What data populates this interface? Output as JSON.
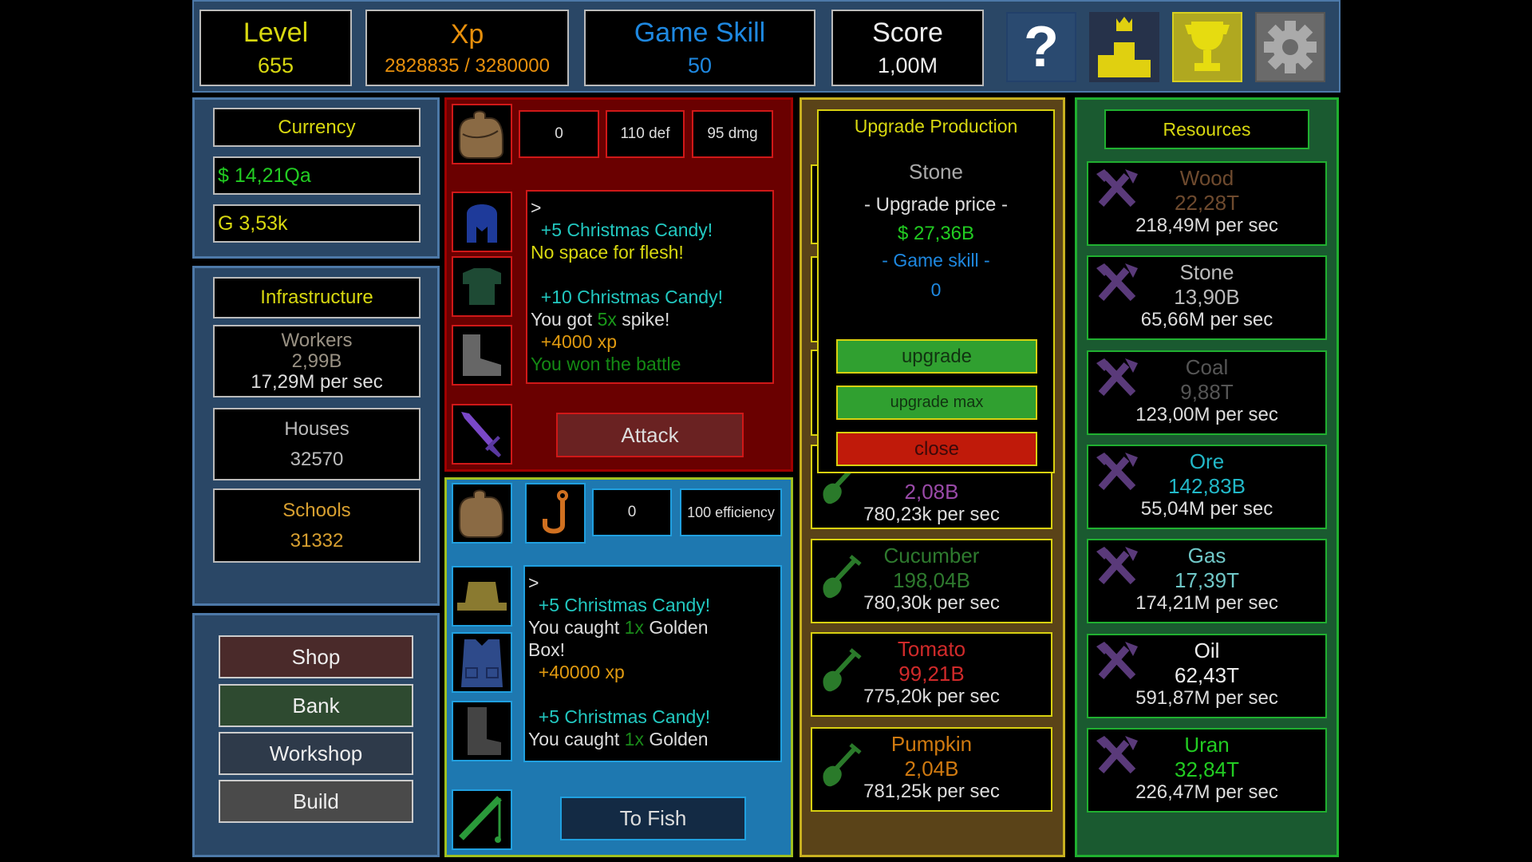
{
  "header": {
    "level": {
      "label": "Level",
      "value": "655"
    },
    "xp": {
      "label": "Xp",
      "value": "2828835 / 3280000"
    },
    "game_skill": {
      "label": "Game Skill",
      "value": "50"
    },
    "score": {
      "label": "Score",
      "value": "1,00M"
    },
    "icons": [
      "question-icon",
      "leaderboard-podium-icon",
      "trophy-icon",
      "gear-icon"
    ]
  },
  "currency": {
    "title": "Currency",
    "money": "$ 14,21Qa",
    "gold": "G 3,53k"
  },
  "infrastructure": {
    "title": "Infrastructure",
    "workers": {
      "label": "Workers",
      "value": "2,99B",
      "rate": "17,29M per sec"
    },
    "houses": {
      "label": "Houses",
      "value": "32570"
    },
    "schools": {
      "label": "Schools",
      "value": "31332"
    }
  },
  "nav": {
    "shop": "Shop",
    "bank": "Bank",
    "workshop": "Workshop",
    "build": "Build"
  },
  "battle": {
    "stats": [
      "0",
      "110 def",
      "95 dmg"
    ],
    "attack": "Attack",
    "log": [
      [
        {
          "t": ">",
          "c": "#dddddd"
        }
      ],
      [
        {
          "t": "  +5 Christmas Candy!",
          "c": "#22c8c0"
        }
      ],
      [
        {
          "t": "No space for flesh!",
          "c": "#d8d810"
        }
      ],
      [
        {
          "t": " ",
          "c": "#dddddd"
        }
      ],
      [
        {
          "t": "  +10 Christmas Candy!",
          "c": "#22c8c0"
        }
      ],
      [
        {
          "t": "You got ",
          "c": "#dddddd"
        },
        {
          "t": "5x",
          "c": "#1a9a1a"
        },
        {
          "t": " spike!",
          "c": "#dddddd"
        }
      ],
      [
        {
          "t": "  +4000 xp",
          "c": "#e09a10"
        }
      ],
      [
        {
          "t": "You won the battle",
          "c": "#148a14"
        }
      ]
    ]
  },
  "fishing": {
    "stats": [
      "0",
      "100 efficiency"
    ],
    "button": "To Fish",
    "log": [
      [
        {
          "t": ">",
          "c": "#dddddd"
        }
      ],
      [
        {
          "t": "  +5 Christmas Candy!",
          "c": "#22c8c0"
        }
      ],
      [
        {
          "t": "You caught ",
          "c": "#dddddd"
        },
        {
          "t": "1x",
          "c": "#1a8a1a"
        },
        {
          "t": " Golden",
          "c": "#dddddd"
        }
      ],
      [
        {
          "t": "Box!",
          "c": "#dddddd"
        }
      ],
      [
        {
          "t": "  +40000 xp",
          "c": "#e09a10"
        }
      ],
      [
        {
          "t": " ",
          "c": "#dddddd"
        }
      ],
      [
        {
          "t": "  +5 Christmas Candy!",
          "c": "#22c8c0"
        }
      ],
      [
        {
          "t": "You caught ",
          "c": "#dddddd"
        },
        {
          "t": "1x",
          "c": "#1a8a1a"
        },
        {
          "t": " Golden",
          "c": "#dddddd"
        }
      ]
    ]
  },
  "upgrade_popup": {
    "title": "Upgrade Production",
    "resource": "Stone",
    "price_label": "- Upgrade price -",
    "price": "$ 27,36B",
    "skill_label": "- Game skill -",
    "skill": "0",
    "upgrade": "upgrade",
    "upgrade_max": "upgrade max",
    "close": "close"
  },
  "farm": [
    {
      "name": "",
      "amount": "2,08B",
      "rate": "780,23k per sec",
      "color": "#9a4aa8"
    },
    {
      "name": "Cucumber",
      "amount": "198,04B",
      "rate": "780,30k per sec",
      "color": "#2e7a2e"
    },
    {
      "name": "Tomato",
      "amount": "99,21B",
      "rate": "775,20k per sec",
      "color": "#d02a2a"
    },
    {
      "name": "Pumpkin",
      "amount": "2,04B",
      "rate": "781,25k per sec",
      "color": "#d07a10"
    }
  ],
  "resources": {
    "title": "Resources",
    "items": [
      {
        "name": "Wood",
        "amount": "22,28T",
        "rate": "218,49M per sec",
        "color": "#6e4a2e"
      },
      {
        "name": "Stone",
        "amount": "13,90B",
        "rate": "65,66M per sec",
        "color": "#bbbbbb"
      },
      {
        "name": "Coal",
        "amount": "9,88T",
        "rate": "123,00M per sec",
        "color": "#555555"
      },
      {
        "name": "Ore",
        "amount": "142,83B",
        "rate": "55,04M per sec",
        "color": "#22b8c8"
      },
      {
        "name": "Gas",
        "amount": "17,39T",
        "rate": "174,21M per sec",
        "color": "#70c8c8"
      },
      {
        "name": "Oil",
        "amount": "62,43T",
        "rate": "591,87M per sec",
        "color": "#eeeeee"
      },
      {
        "name": "Uran",
        "amount": "32,84T",
        "rate": "226,47M per sec",
        "color": "#22cc22"
      }
    ]
  }
}
